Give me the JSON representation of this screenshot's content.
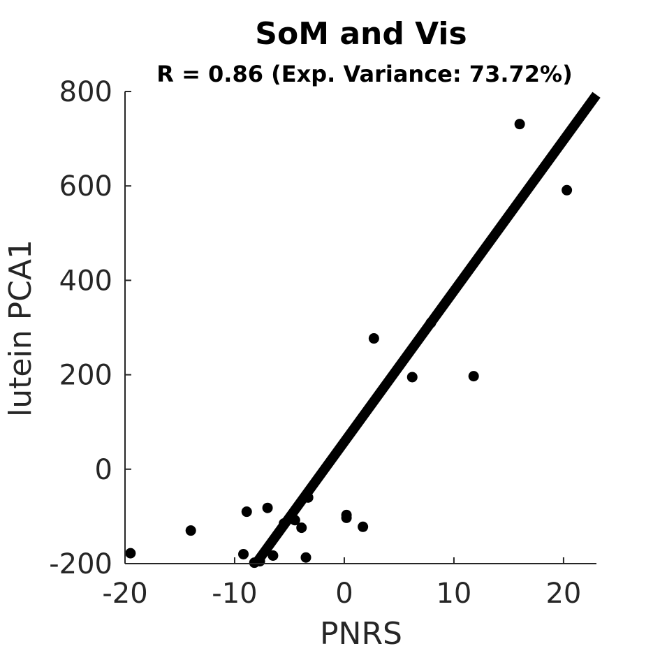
{
  "chart_data": {
    "type": "scatter",
    "title": "SoM and Vis",
    "subtitle": "R = 0.86 (Exp. Variance: 73.72%)",
    "xlabel": "PNRS",
    "ylabel": "lutein PCA1",
    "xlim": [
      -20,
      23
    ],
    "ylim": [
      -200,
      800
    ],
    "xticks": [
      -20,
      -10,
      0,
      10,
      20
    ],
    "yticks": [
      -200,
      0,
      200,
      400,
      600,
      800
    ],
    "grid": false,
    "series": [
      {
        "points": [
          {
            "x": -19.5,
            "y": -178
          },
          {
            "x": -14.0,
            "y": -130
          },
          {
            "x": -9.2,
            "y": -180
          },
          {
            "x": -8.9,
            "y": -90
          },
          {
            "x": -8.2,
            "y": -198
          },
          {
            "x": -7.7,
            "y": -195
          },
          {
            "x": -7.0,
            "y": -82
          },
          {
            "x": -6.5,
            "y": -183
          },
          {
            "x": -5.5,
            "y": -115
          },
          {
            "x": -4.5,
            "y": -108
          },
          {
            "x": -3.9,
            "y": -124
          },
          {
            "x": -3.5,
            "y": -187
          },
          {
            "x": -3.3,
            "y": -60
          },
          {
            "x": 0.2,
            "y": -97
          },
          {
            "x": 0.2,
            "y": -103
          },
          {
            "x": 1.7,
            "y": -122
          },
          {
            "x": 2.7,
            "y": 277
          },
          {
            "x": 6.2,
            "y": 195
          },
          {
            "x": 7.9,
            "y": 310
          },
          {
            "x": 11.8,
            "y": 197
          },
          {
            "x": 16.0,
            "y": 731
          },
          {
            "x": 20.3,
            "y": 591
          }
        ]
      }
    ],
    "fit_line": {
      "x": [
        -8.0,
        23.0
      ],
      "y": [
        -198,
        793
      ]
    },
    "colors": {
      "points": "#000000",
      "fit_line": "#000000",
      "axis": "#262626"
    }
  }
}
